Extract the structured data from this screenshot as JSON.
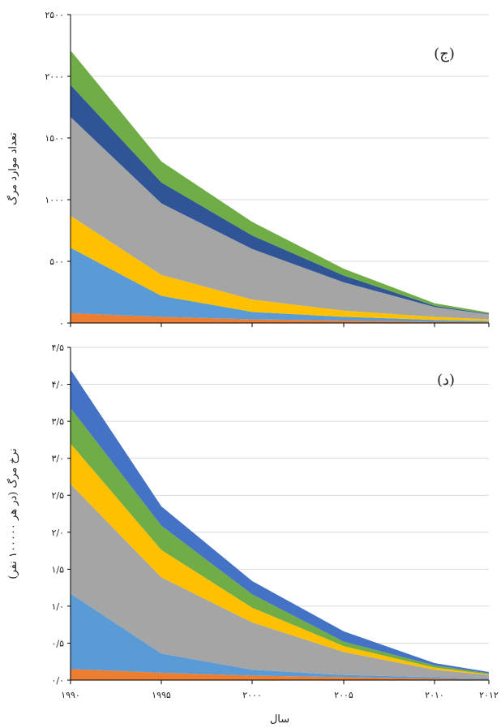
{
  "chart_data": [
    {
      "type": "area",
      "stacked": true,
      "panel_label": "(ج)",
      "ylabel": "تعداد موارد مرگ",
      "ylim": [
        0,
        2500
      ],
      "yticks": [
        0,
        500,
        1000,
        1500,
        2000,
        2500
      ],
      "ytick_labels": [
        "۰",
        "۵۰۰",
        "۱۰۰۰",
        "۱۵۰۰",
        "۲۰۰۰",
        "۲۵۰۰"
      ],
      "grid": true,
      "x": [
        1990,
        1995,
        2000,
        2005,
        2010,
        2012
      ],
      "series": [
        {
          "color": "#ED7D31",
          "values": [
            80,
            50,
            30,
            20,
            10,
            5
          ]
        },
        {
          "color": "#5B9BD5",
          "values": [
            530,
            170,
            60,
            30,
            15,
            10
          ]
        },
        {
          "color": "#FFC000",
          "values": [
            260,
            170,
            100,
            50,
            25,
            15
          ]
        },
        {
          "color": "#A5A5A5",
          "values": [
            800,
            580,
            410,
            230,
            80,
            40
          ]
        },
        {
          "color": "#2F5597",
          "values": [
            260,
            170,
            110,
            55,
            10,
            5
          ]
        },
        {
          "color": "#70AD47",
          "values": [
            280,
            170,
            110,
            55,
            20,
            10
          ]
        }
      ]
    },
    {
      "type": "area",
      "stacked": true,
      "panel_label": "(د)",
      "ylabel": "نرخ مرگ (در هر ۱۰۰۰۰۰ نفر)",
      "xlabel": "سال",
      "ylim": [
        0,
        4.5
      ],
      "yticks": [
        0,
        0.5,
        1,
        1.5,
        2,
        2.5,
        3,
        3.5,
        4,
        4.5
      ],
      "ytick_labels": [
        "۰/۰",
        "۰/۵",
        "۱/۰",
        "۱/۵",
        "۲/۰",
        "۲/۵",
        "۳/۰",
        "۳/۵",
        "۴/۰",
        "۴/۵"
      ],
      "grid": true,
      "x": [
        1990,
        1995,
        2000,
        2005,
        2010,
        2012
      ],
      "xtick_labels": [
        "۱۹۹۰",
        "۱۹۹۵",
        "۲۰۰۰",
        "۲۰۰۵",
        "۲۰۱۰",
        "۲۰۱۲"
      ],
      "series": [
        {
          "color": "#ED7D31",
          "values": [
            0.15,
            0.1,
            0.06,
            0.04,
            0.02,
            0.01
          ]
        },
        {
          "color": "#5B9BD5",
          "values": [
            1.02,
            0.26,
            0.08,
            0.03,
            0.02,
            0.01
          ]
        },
        {
          "color": "#A5A5A5",
          "values": [
            1.48,
            1.03,
            0.64,
            0.31,
            0.1,
            0.05
          ]
        },
        {
          "color": "#FFC000",
          "values": [
            0.55,
            0.37,
            0.2,
            0.08,
            0.03,
            0.01
          ]
        },
        {
          "color": "#70AD47",
          "values": [
            0.48,
            0.33,
            0.18,
            0.06,
            0.03,
            0.01
          ]
        },
        {
          "color": "#4472C4",
          "values": [
            0.52,
            0.26,
            0.18,
            0.14,
            0.03,
            0.02
          ]
        }
      ]
    }
  ]
}
